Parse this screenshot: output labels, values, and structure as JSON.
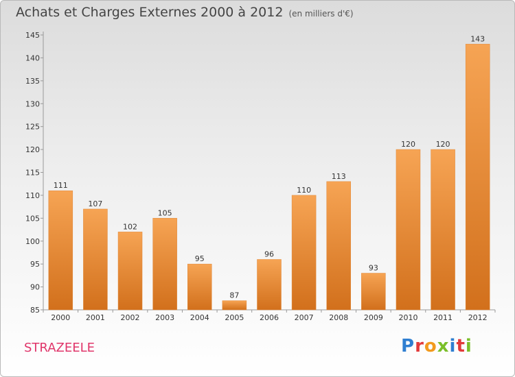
{
  "title": "Achats et Charges Externes 2000 à 2012",
  "subtitle": "(en milliers d'€)",
  "commune": "STRAZEELE",
  "logo": {
    "text": "Proxiti",
    "letters": [
      {
        "ch": "P",
        "color": "#2f7fd1"
      },
      {
        "ch": "r",
        "color": "#e23a3a"
      },
      {
        "ch": "o",
        "color": "#f29a1e"
      },
      {
        "ch": "x",
        "color": "#7bbf2a"
      },
      {
        "ch": "i",
        "color": "#2f7fd1"
      },
      {
        "ch": "t",
        "color": "#e23a3a"
      },
      {
        "ch": "i",
        "color": "#7bbf2a"
      }
    ]
  },
  "chart_data": {
    "type": "bar",
    "title": "Achats et Charges Externes 2000 à 2012",
    "subtitle": "(en milliers d'€)",
    "categories": [
      "2000",
      "2001",
      "2002",
      "2003",
      "2004",
      "2005",
      "2006",
      "2007",
      "2008",
      "2009",
      "2010",
      "2011",
      "2012"
    ],
    "values": [
      111,
      107,
      102,
      105,
      95,
      87,
      96,
      110,
      113,
      93,
      120,
      120,
      143
    ],
    "ylim": [
      85,
      145
    ],
    "yticks": [
      85,
      90,
      95,
      100,
      105,
      110,
      115,
      120,
      125,
      130,
      135,
      140,
      145
    ],
    "grid": false,
    "bar_color": "#f0902e"
  }
}
